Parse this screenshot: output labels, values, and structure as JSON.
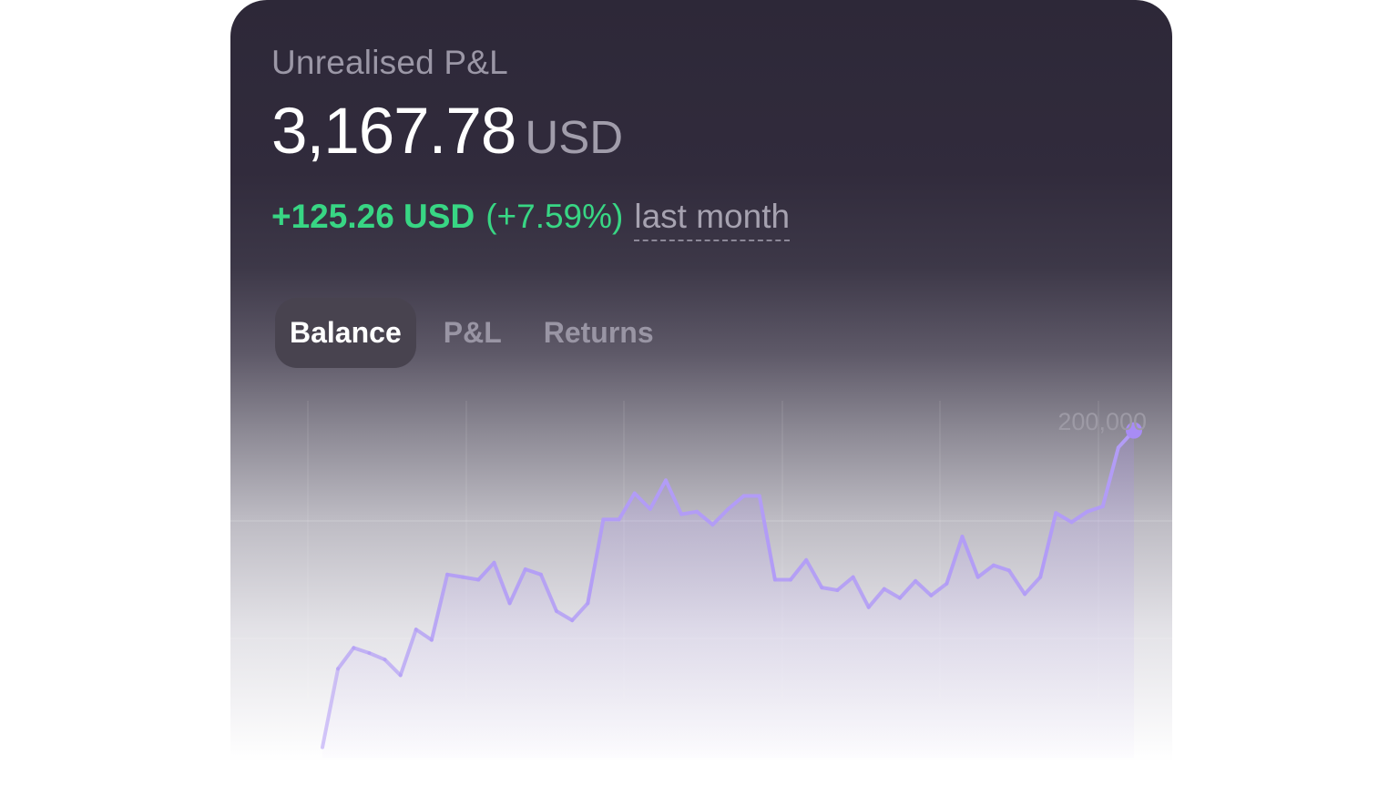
{
  "header": {
    "title": "Unrealised P&L",
    "amount": "3,167.78",
    "currency": "USD",
    "change_value": "+125.26 USD",
    "change_percent": "(+7.59%)",
    "period": "last month"
  },
  "tabs": [
    {
      "label": "Balance",
      "active": true
    },
    {
      "label": "P&L",
      "active": false
    },
    {
      "label": "Returns",
      "active": false
    }
  ],
  "colors": {
    "positive": "#38d684",
    "line": "#b29cf6",
    "endpoint": "#a88cf5"
  },
  "chart_data": {
    "type": "line",
    "y_tick_label": "200,000",
    "ylim": [
      0,
      240000
    ],
    "grid": true,
    "series": [
      {
        "values": [
          8000,
          68000,
          84000,
          80000,
          75000,
          63000,
          98000,
          90000,
          140000,
          138000,
          136000,
          149000,
          118000,
          144000,
          140000,
          112000,
          105000,
          118000,
          182000,
          182000,
          202000,
          190000,
          212000,
          186000,
          188000,
          178000,
          190000,
          200000,
          200000,
          136000,
          136000,
          151000,
          130000,
          128000,
          138000,
          115000,
          129000,
          122000,
          135000,
          124000,
          133000,
          169000,
          138000,
          147000,
          143000,
          125000,
          138000,
          187000,
          180000,
          188000,
          192000,
          237000,
          250000
        ]
      }
    ]
  }
}
